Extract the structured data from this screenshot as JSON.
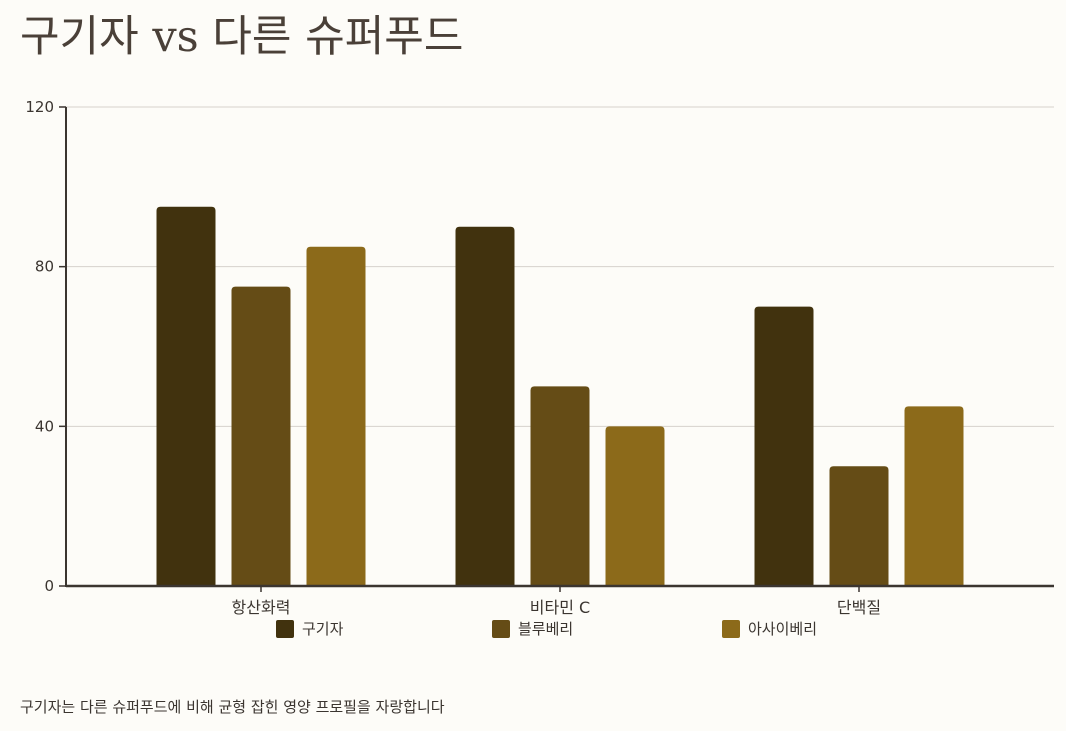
{
  "title": "구기자 vs 다른 슈퍼푸드",
  "footnote": "구기자는 다른 슈퍼푸드에 비해 균형 잡힌 영양 프로필을 자랑합니다",
  "colors": {
    "background": "#fdfcf8",
    "axis": "#3b3530",
    "grid": "#d6d2cc",
    "text": "#3b3530"
  },
  "chart_data": {
    "type": "bar",
    "title": "구기자 vs 다른 슈퍼푸드",
    "xlabel": "",
    "ylabel": "",
    "categories": [
      "항산화력",
      "비타민 C",
      "단백질"
    ],
    "series": [
      {
        "name": "구기자",
        "color": "#41320e",
        "values": [
          95,
          90,
          70
        ]
      },
      {
        "name": "블루베리",
        "color": "#654c16",
        "values": [
          75,
          50,
          30
        ]
      },
      {
        "name": "아사이베리",
        "color": "#8c6a1a",
        "values": [
          85,
          40,
          45
        ]
      }
    ],
    "ylim": [
      0,
      120
    ],
    "yticks": [
      0,
      40,
      80,
      120
    ],
    "grid": true,
    "legend_position": "bottom"
  }
}
